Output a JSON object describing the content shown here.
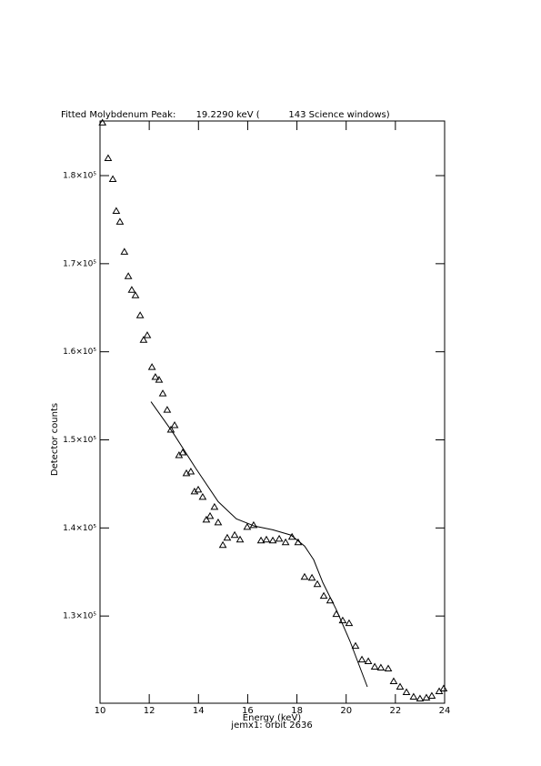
{
  "chart_data": {
    "type": "scatter",
    "title": "Fitted Molybdenum Peak:       19.2290 keV (          143 Science windows)",
    "x_label": "Energy (keV)",
    "subtitle": "jemx1: orbit 2636",
    "y_label": "Detector counts",
    "xlim": [
      10,
      24
    ],
    "xticks": [
      10,
      12,
      14,
      16,
      18,
      20,
      22,
      24
    ],
    "ylim": [
      120100,
      186200
    ],
    "yticks": [
      {
        "value": 130000,
        "label": "1.3×10⁵"
      },
      {
        "value": 140000,
        "label": "1.4×10⁵"
      },
      {
        "value": 150000,
        "label": "1.5×10⁵"
      },
      {
        "value": 160000,
        "label": "1.6×10⁵"
      },
      {
        "value": 170000,
        "label": "1.7×10⁵"
      },
      {
        "value": 180000,
        "label": "1.8×10⁵"
      }
    ],
    "grid": false,
    "series": [
      {
        "color": "#000000",
        "marker": "triangle",
        "line": false,
        "x": [
          10.1,
          10.33,
          10.52,
          10.66,
          10.81,
          10.99,
          11.15,
          11.29,
          11.44,
          11.63,
          11.77,
          11.92,
          12.11,
          12.25,
          12.4,
          12.55,
          12.73,
          12.88,
          13.03,
          13.21,
          13.36,
          13.51,
          13.69,
          13.84,
          13.99,
          14.17,
          14.32,
          14.47,
          14.65,
          14.8,
          14.99,
          15.17,
          15.47,
          15.69,
          15.98,
          16.24,
          16.54,
          16.76,
          17.02,
          17.28,
          17.54,
          17.8,
          18.05,
          18.31,
          18.61,
          18.83,
          19.09,
          19.35,
          19.6,
          19.86,
          20.12,
          20.38,
          20.64,
          20.9,
          21.16,
          21.41,
          21.71,
          21.93,
          22.19,
          22.45,
          22.74,
          23.0,
          23.26,
          23.48,
          23.78,
          23.96
        ],
        "values": [
          186000,
          181960,
          179590,
          175980,
          174750,
          171340,
          168560,
          167010,
          166390,
          164120,
          161340,
          161860,
          158250,
          157120,
          156810,
          155260,
          153400,
          151140,
          151650,
          148250,
          148560,
          146190,
          146390,
          144120,
          144330,
          143510,
          140930,
          141340,
          142370,
          140620,
          138040,
          138870,
          139180,
          138660,
          140100,
          140310,
          138560,
          138660,
          138560,
          138760,
          138350,
          138970,
          138350,
          134430,
          134330,
          133610,
          132270,
          131750,
          130210,
          129480,
          129170,
          126600,
          125050,
          124850,
          124230,
          124130,
          124030,
          122580,
          121960,
          121340,
          120820,
          120620,
          120720,
          120930,
          121440,
          121750
        ]
      },
      {
        "color": "#000000",
        "marker": "none",
        "line": true,
        "x": [
          12.07,
          12.96,
          13.88,
          14.8,
          15.54,
          16.28,
          17.02,
          17.76,
          18.31,
          18.68,
          19.05,
          19.6,
          20.16,
          20.86
        ],
        "values": [
          154330,
          150830,
          146810,
          142990,
          141030,
          140210,
          139790,
          139180,
          137940,
          136390,
          133810,
          130720,
          127110,
          121960
        ]
      }
    ]
  }
}
